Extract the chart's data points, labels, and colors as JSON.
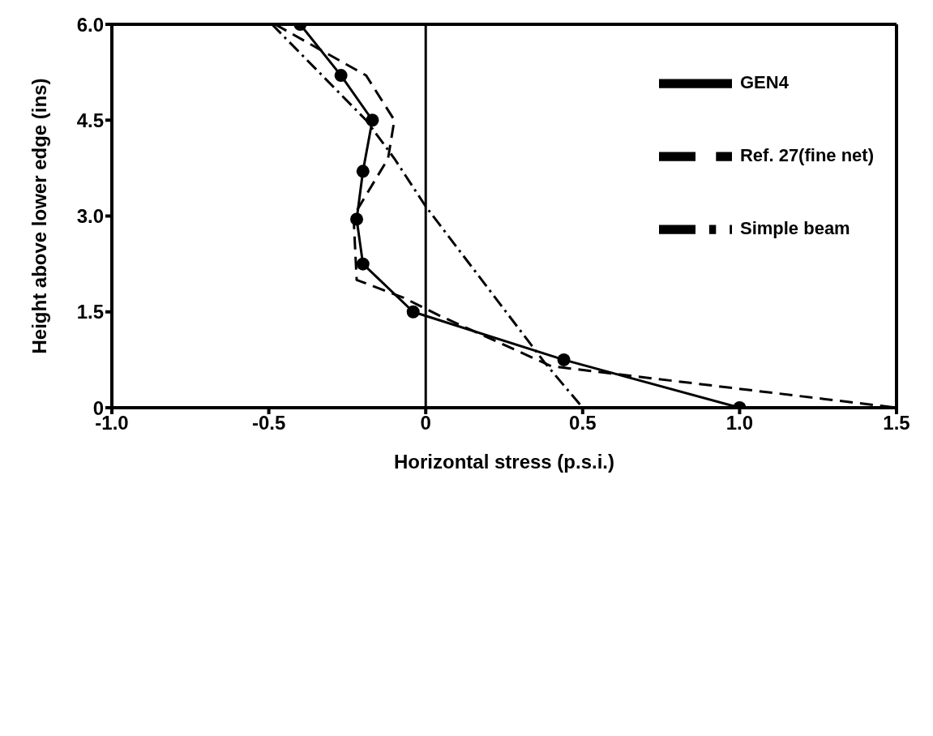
{
  "chart_data": {
    "type": "line",
    "xlabel": "Horizontal  stress (p.s.i.)",
    "ylabel": "Height above  lower edge (ins)",
    "xlim": [
      -1,
      1.5
    ],
    "ylim": [
      0,
      6
    ],
    "xticks": [
      {
        "value": -1,
        "label": "-1.0"
      },
      -0.5,
      0,
      0.5,
      {
        "value": 1,
        "label": "1.0"
      },
      1.5
    ],
    "yticks": [
      0,
      1.5,
      {
        "value": 3,
        "label": "3.0"
      },
      4.5,
      {
        "value": 6,
        "label": "6.0"
      }
    ],
    "grid": false,
    "legend": "top right",
    "ref_lines": [
      {
        "axis": "x",
        "value": 0,
        "color": "#000000"
      }
    ],
    "series": [
      {
        "name": "Simple beam",
        "color": "#000000",
        "line_style": "dashdot",
        "marker": "none",
        "x": [
          -0.49,
          -0.19,
          -0.1,
          0,
          0.38,
          0.5
        ],
        "values": [
          6,
          4.5,
          3.9,
          3.15,
          0.7,
          0
        ]
      },
      {
        "name": "Ref. 27(fine net)",
        "color": "#000000",
        "line_style": "dashed",
        "marker": "none",
        "x": [
          -0.48,
          -0.19,
          -0.1,
          -0.12,
          -0.23,
          -0.22,
          -0.07,
          0.04,
          0.4,
          1.5
        ],
        "values": [
          6,
          5.2,
          4.5,
          3.9,
          3,
          2,
          1.72,
          1.45,
          0.65,
          0
        ]
      },
      {
        "name": "GEN4",
        "color": "#000000",
        "line_style": "solid",
        "marker": "circle",
        "x": [
          -0.4,
          -0.27,
          -0.17,
          -0.2,
          -0.22,
          -0.2,
          -0.04,
          0.44,
          1
        ],
        "values": [
          6,
          5.2,
          4.5,
          3.7,
          2.95,
          2.25,
          1.5,
          0.75,
          0
        ]
      }
    ]
  }
}
